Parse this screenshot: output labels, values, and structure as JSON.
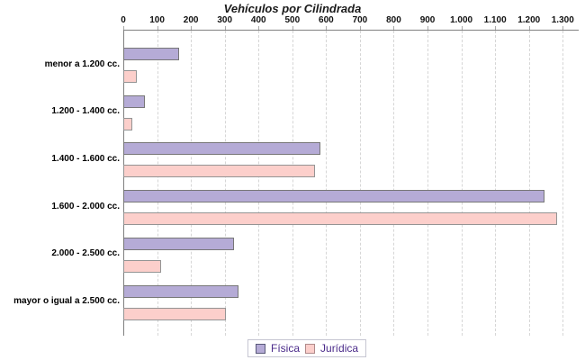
{
  "chart_data": {
    "type": "bar",
    "orientation": "horizontal",
    "title": "Vehículos por Cilindrada",
    "categories": [
      "menor a 1.200 cc.",
      "1.200 - 1.400 cc.",
      "1.400 - 1.600 cc.",
      "1.600 - 2.000 cc.",
      "2.000 - 2.500 cc.",
      "mayor o igual a 2.500 cc."
    ],
    "series": [
      {
        "name": "Física",
        "fill": "#b5abd6",
        "border": "#777777",
        "values": [
          165,
          63,
          583,
          1245,
          328,
          340
        ]
      },
      {
        "name": "Jurídica",
        "fill": "#fccfcb",
        "border": "#949494",
        "values": [
          40,
          26,
          567,
          1283,
          113,
          304
        ]
      }
    ],
    "x_axis": {
      "position": "top",
      "min": 0,
      "max": 1300,
      "tick_step": 100,
      "tick_labels": [
        "0",
        "100",
        "200",
        "300",
        "400",
        "500",
        "600",
        "700",
        "800",
        "900",
        "1.000",
        "1.100",
        "1.200",
        "1.300"
      ]
    },
    "grid": "vertical-dashed",
    "legend": {
      "position": "bottom",
      "entries": [
        "Física",
        "Jurídica"
      ]
    },
    "colors": {
      "axis": "#808080",
      "gridline": "#d6d6d6",
      "title_text": "#1a1a1a",
      "legend_text": "#4a2a8a",
      "fisica_fill": "#b5abd6",
      "fisica_border": "#777777",
      "juridica_fill": "#fccfcb",
      "juridica_border": "#949494"
    }
  }
}
